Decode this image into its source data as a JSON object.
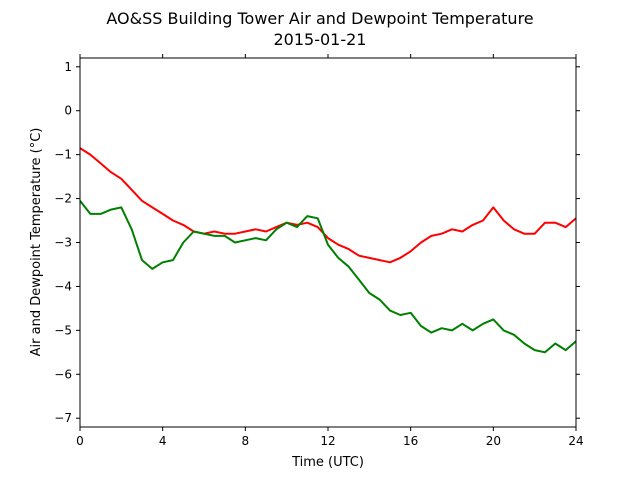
{
  "chart_data": {
    "type": "line",
    "title_line1": "AO&SS Building Tower Air and Dewpoint Temperature",
    "title_line2": "2015-01-21",
    "xlabel": "Time (UTC)",
    "ylabel": "Air and Dewpoint Temperature (°C)",
    "xlim": [
      0,
      24
    ],
    "ylim": [
      -7.2,
      1.2
    ],
    "xticks": [
      0,
      4,
      8,
      12,
      16,
      20,
      24
    ],
    "yticks": [
      1,
      0,
      -1,
      -2,
      -3,
      -4,
      -5,
      -6,
      -7
    ],
    "grid": false,
    "series": [
      {
        "color": "#ff0000",
        "x": [
          0,
          0.5,
          1,
          1.5,
          2,
          2.5,
          3,
          3.5,
          4,
          4.5,
          5,
          5.5,
          6,
          6.5,
          7,
          7.5,
          8,
          8.5,
          9,
          9.5,
          10,
          10.5,
          11,
          11.5,
          12,
          12.5,
          13,
          13.5,
          14,
          14.5,
          15,
          15.5,
          16,
          16.5,
          17,
          17.5,
          18,
          18.5,
          19,
          19.5,
          20,
          20.5,
          21,
          21.5,
          22,
          22.5,
          23,
          23.5,
          24
        ],
        "values": [
          -0.85,
          -1.0,
          -1.2,
          -1.4,
          -1.55,
          -1.8,
          -2.05,
          -2.2,
          -2.35,
          -2.5,
          -2.6,
          -2.75,
          -2.8,
          -2.75,
          -2.8,
          -2.8,
          -2.75,
          -2.7,
          -2.75,
          -2.65,
          -2.55,
          -2.6,
          -2.55,
          -2.65,
          -2.9,
          -3.05,
          -3.15,
          -3.3,
          -3.35,
          -3.4,
          -3.45,
          -3.35,
          -3.2,
          -3.0,
          -2.85,
          -2.8,
          -2.7,
          -2.75,
          -2.6,
          -2.5,
          -2.2,
          -2.5,
          -2.7,
          -2.8,
          -2.8,
          -2.55,
          -2.55,
          -2.65,
          -2.45
        ]
      },
      {
        "color": "#008000",
        "x": [
          0,
          0.5,
          1,
          1.5,
          2,
          2.5,
          3,
          3.5,
          4,
          4.5,
          5,
          5.5,
          6,
          6.5,
          7,
          7.5,
          8,
          8.5,
          9,
          9.5,
          10,
          10.5,
          11,
          11.5,
          12,
          12.5,
          13,
          13.5,
          14,
          14.5,
          15,
          15.5,
          16,
          16.5,
          17,
          17.5,
          18,
          18.5,
          19,
          19.5,
          20,
          20.5,
          21,
          21.5,
          22,
          22.5,
          23,
          23.5,
          24
        ],
        "values": [
          -2.05,
          -2.35,
          -2.35,
          -2.25,
          -2.2,
          -2.7,
          -3.4,
          -3.6,
          -3.45,
          -3.4,
          -3.0,
          -2.75,
          -2.8,
          -2.85,
          -2.85,
          -3.0,
          -2.95,
          -2.9,
          -2.95,
          -2.7,
          -2.55,
          -2.65,
          -2.4,
          -2.45,
          -3.05,
          -3.35,
          -3.55,
          -3.85,
          -4.15,
          -4.3,
          -4.55,
          -4.65,
          -4.6,
          -4.9,
          -5.05,
          -4.95,
          -5.0,
          -4.85,
          -5.0,
          -4.85,
          -4.75,
          -5.0,
          -5.1,
          -5.3,
          -5.45,
          -5.5,
          -5.3,
          -5.45,
          -5.25
        ]
      }
    ]
  }
}
